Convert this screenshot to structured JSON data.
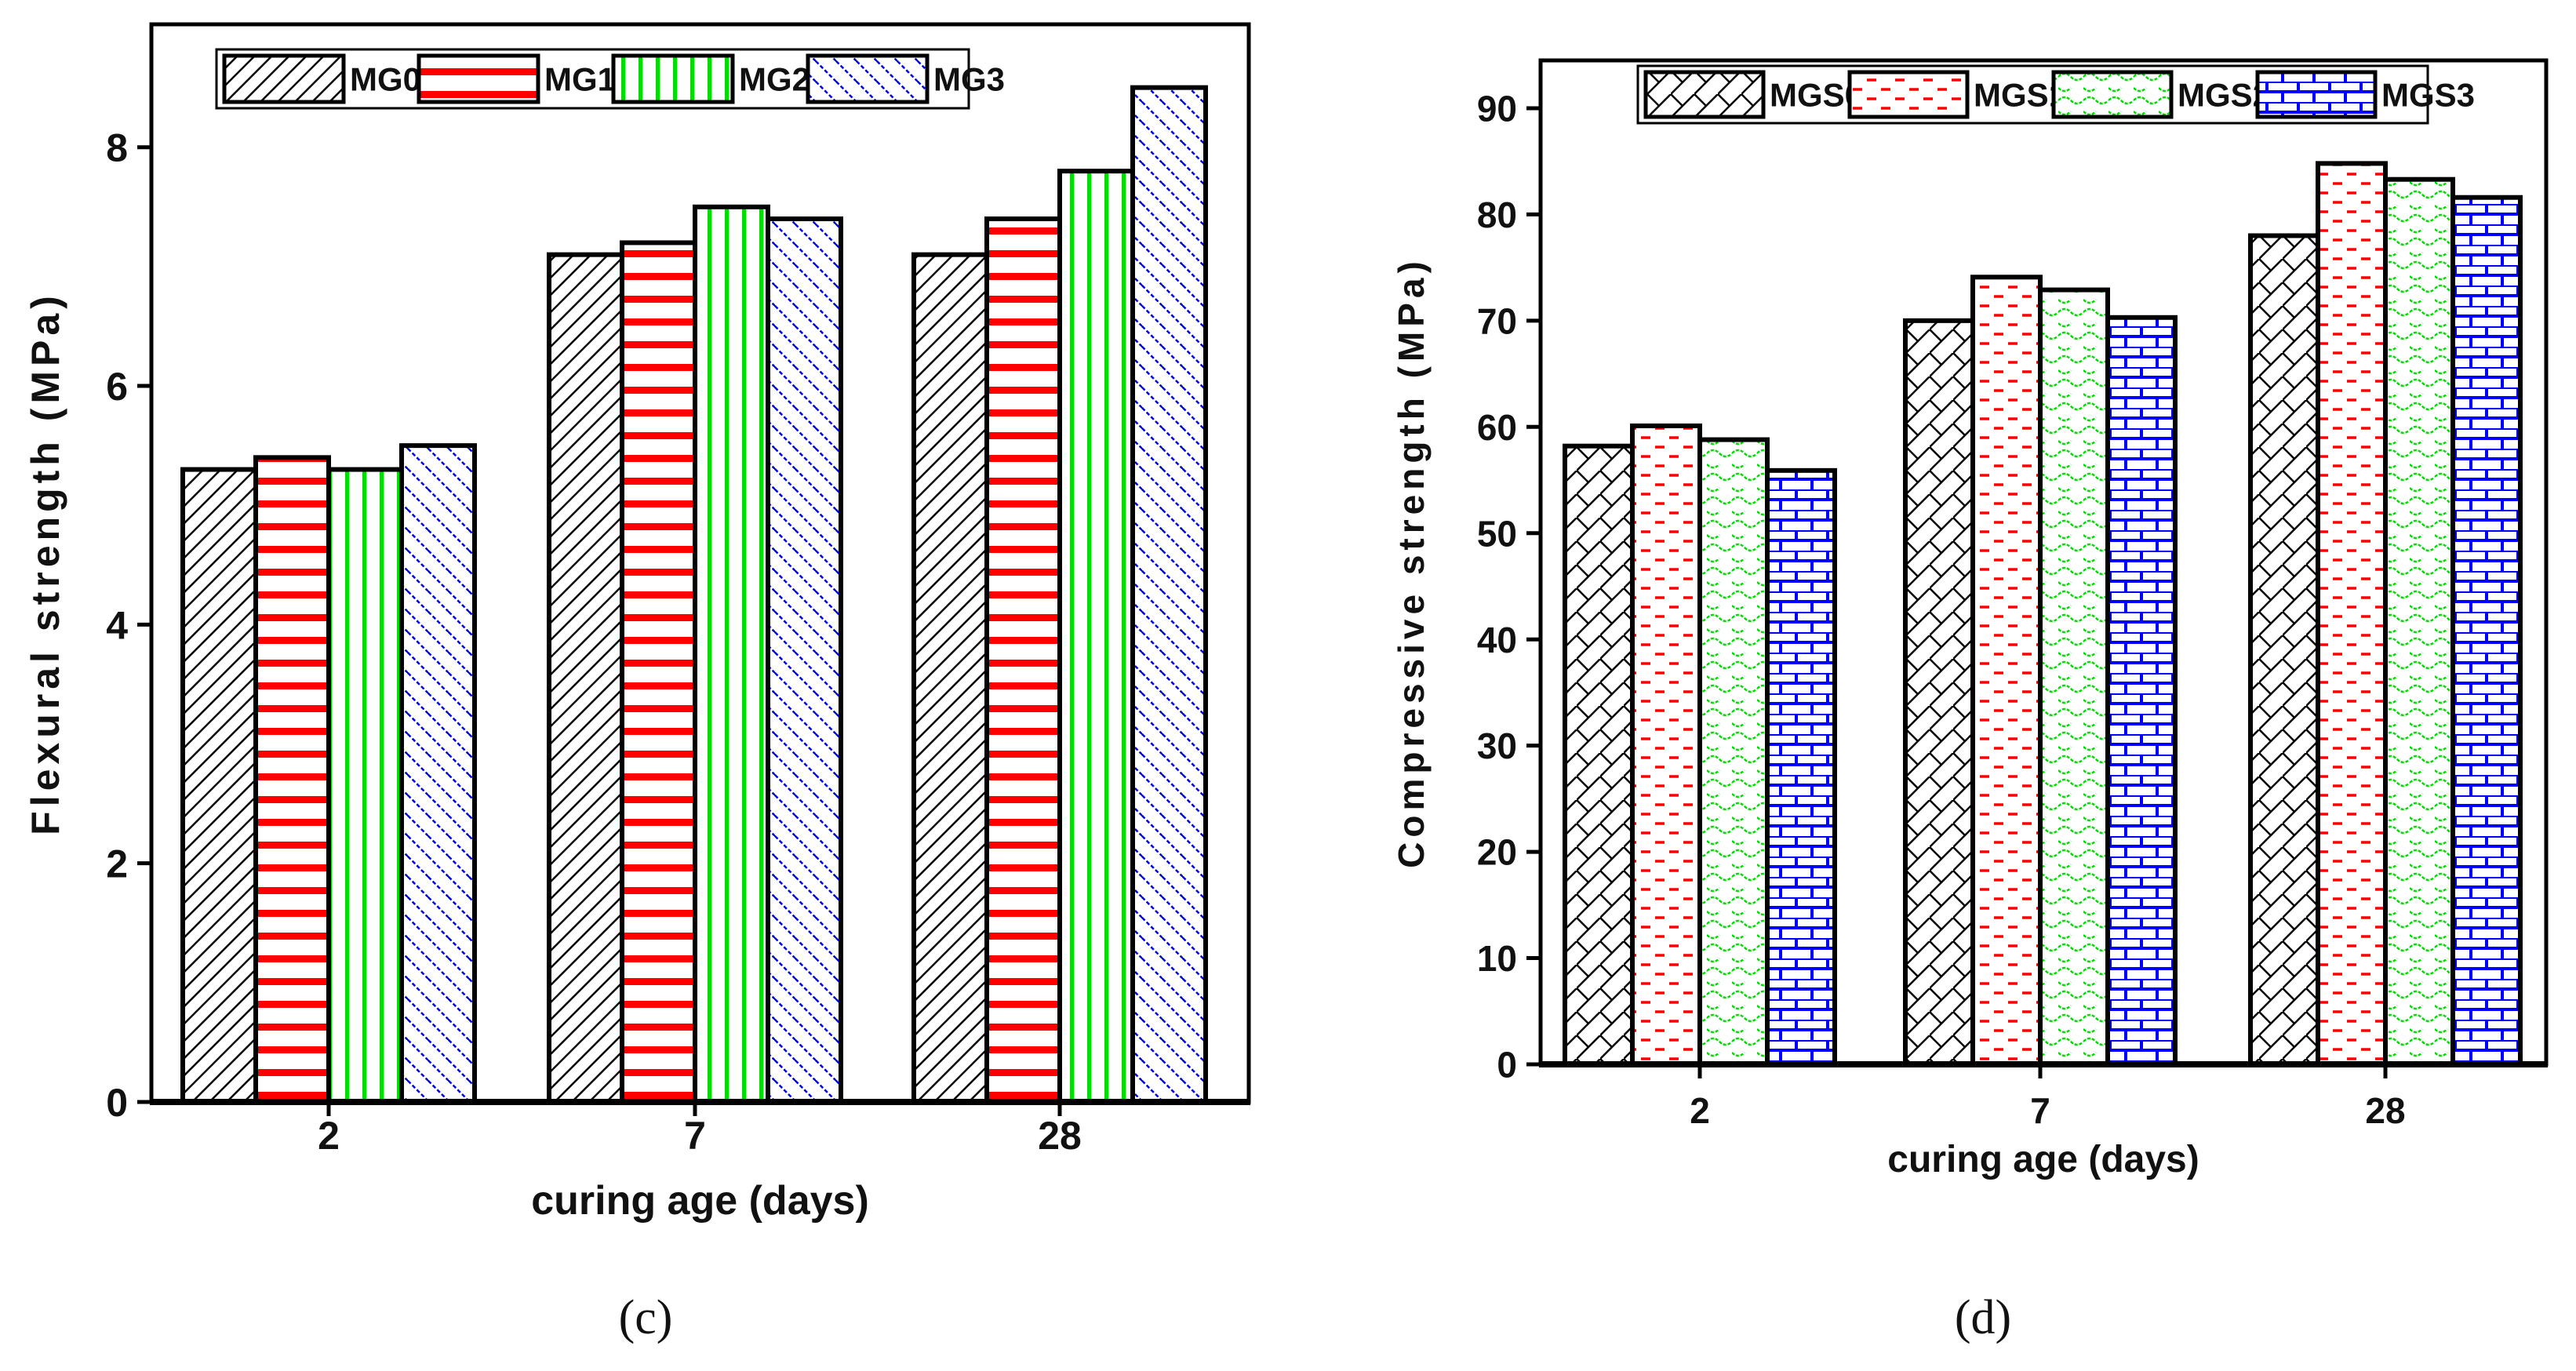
{
  "chart_data": [
    {
      "type": "bar",
      "panel_label": "(c)",
      "title": "",
      "xlabel": "curing age (days)",
      "ylabel": "Flexural strength (MPa)",
      "categories": [
        "2",
        "7",
        "28"
      ],
      "ylim": [
        0,
        9.03
      ],
      "yticks": [
        0,
        2,
        4,
        6,
        8
      ],
      "grid": false,
      "legend_position": "top-left",
      "series": [
        {
          "name": "MG0",
          "values": [
            5.3,
            7.1,
            7.1
          ],
          "color": "#000000",
          "pattern": "diag-right"
        },
        {
          "name": "MG1",
          "values": [
            5.4,
            7.2,
            7.4
          ],
          "color": "#ff0000",
          "pattern": "horizontal"
        },
        {
          "name": "MG2",
          "values": [
            5.3,
            7.5,
            7.8
          ],
          "color": "#00dd00",
          "pattern": "vertical"
        },
        {
          "name": "MG3",
          "values": [
            5.5,
            7.4,
            8.5
          ],
          "color": "#0000ff",
          "pattern": "diag-left"
        }
      ]
    },
    {
      "type": "bar",
      "panel_label": "(d)",
      "title": "",
      "xlabel": "curing age (days)",
      "ylabel": "Compressive strength (MPa)",
      "categories": [
        "2",
        "7",
        "28"
      ],
      "ylim": [
        0,
        94.5
      ],
      "yticks": [
        0,
        10,
        20,
        30,
        40,
        50,
        60,
        70,
        80,
        90
      ],
      "grid": false,
      "legend_position": "top",
      "series": [
        {
          "name": "MGS0",
          "values": [
            58.2,
            70.0,
            78.0
          ],
          "color": "#000000",
          "pattern": "crosshatch"
        },
        {
          "name": "MGS1",
          "values": [
            60.1,
            74.1,
            84.8
          ],
          "color": "#ff0000",
          "pattern": "dashes"
        },
        {
          "name": "MGS2",
          "values": [
            58.8,
            72.9,
            83.3
          ],
          "color": "#00dd00",
          "pattern": "wave"
        },
        {
          "name": "MGS3",
          "values": [
            55.9,
            70.3,
            81.6
          ],
          "color": "#0000ff",
          "pattern": "brick"
        }
      ]
    }
  ]
}
